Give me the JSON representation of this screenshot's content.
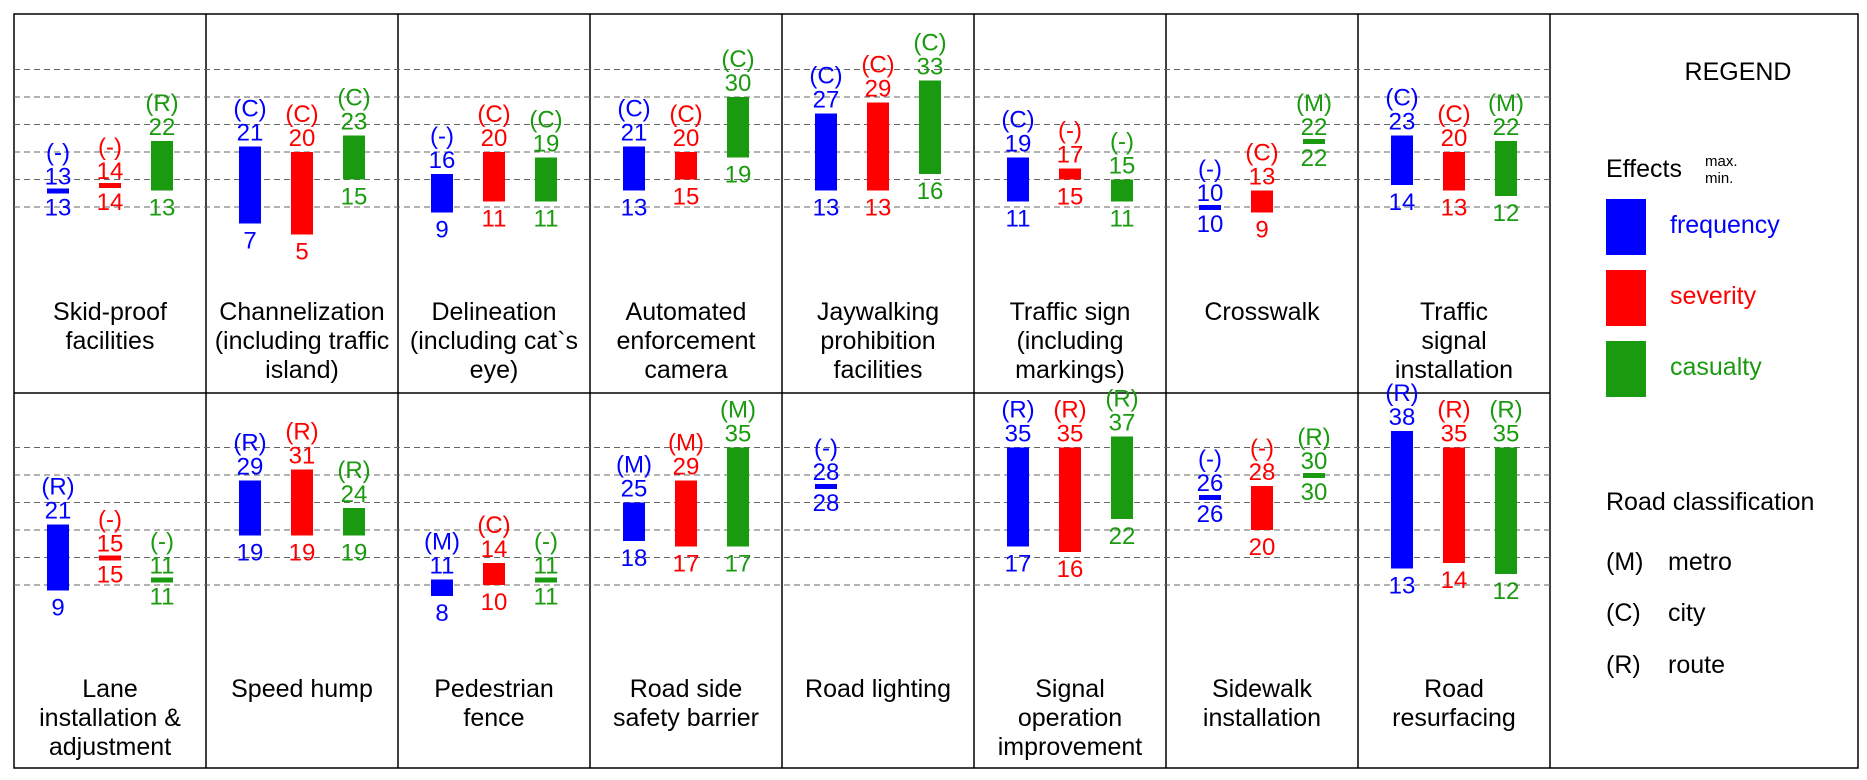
{
  "legend": {
    "title": "REGEND",
    "effects_label": "Effects",
    "max_label": "max.",
    "min_label": "min.",
    "items": [
      {
        "label": "frequency",
        "color": "#0000ff"
      },
      {
        "label": "severity",
        "color": "#ff0000"
      },
      {
        "label": "casualty",
        "color": "#1a9a0f"
      }
    ],
    "road_title": "Road classification",
    "roads": [
      {
        "code": "(M)",
        "label": "metro"
      },
      {
        "code": "(C)",
        "label": "city"
      },
      {
        "code": "(R)",
        "label": "route"
      }
    ]
  },
  "chart_data": {
    "type": "bar",
    "series_colors": {
      "frequency": "#0000ff",
      "severity": "#ff0000",
      "casualty": "#1a9a0f"
    },
    "panels": [
      {
        "title": [
          "Skid-proof",
          "facilities"
        ],
        "frequency": {
          "cls": "(-)",
          "max": 13,
          "min": 13
        },
        "severity": {
          "cls": "(-)",
          "max": 14,
          "min": 14
        },
        "casualty": {
          "cls": "(R)",
          "max": 22,
          "min": 13
        }
      },
      {
        "title": [
          "Channelization",
          "(including traffic",
          "island)"
        ],
        "frequency": {
          "cls": "(C)",
          "max": 21,
          "min": 7
        },
        "severity": {
          "cls": "(C)",
          "max": 20,
          "min": 5
        },
        "casualty": {
          "cls": "(C)",
          "max": 23,
          "min": 15
        }
      },
      {
        "title": [
          "Delineation",
          "(including cat`s",
          "eye)"
        ],
        "frequency": {
          "cls": "(-)",
          "max": 16,
          "min": 9
        },
        "severity": {
          "cls": "(C)",
          "max": 20,
          "min": 11
        },
        "casualty": {
          "cls": "(C)",
          "max": 19,
          "min": 11
        }
      },
      {
        "title": [
          "Automated",
          "enforcement",
          "camera"
        ],
        "frequency": {
          "cls": "(C)",
          "max": 21,
          "min": 13
        },
        "severity": {
          "cls": "(C)",
          "max": 20,
          "min": 15
        },
        "casualty": {
          "cls": "(C)",
          "max": 30,
          "min": 19
        }
      },
      {
        "title": [
          "Jaywalking",
          "prohibition",
          "facilities"
        ],
        "frequency": {
          "cls": "(C)",
          "max": 27,
          "min": 13
        },
        "severity": {
          "cls": "(C)",
          "max": 29,
          "min": 13
        },
        "casualty": {
          "cls": "(C)",
          "max": 33,
          "min": 16
        }
      },
      {
        "title": [
          "Traffic sign",
          "(including",
          "markings)"
        ],
        "frequency": {
          "cls": "(C)",
          "max": 19,
          "min": 11
        },
        "severity": {
          "cls": "(-)",
          "max": 17,
          "min": 15
        },
        "casualty": {
          "cls": "(-)",
          "max": 15,
          "min": 11
        }
      },
      {
        "title": [
          "Crosswalk"
        ],
        "frequency": {
          "cls": "(-)",
          "max": 10,
          "min": 10
        },
        "severity": {
          "cls": "(C)",
          "max": 13,
          "min": 9
        },
        "casualty": {
          "cls": "(M)",
          "max": 22,
          "min": 22
        }
      },
      {
        "title": [
          "Traffic",
          "signal",
          "installation"
        ],
        "frequency": {
          "cls": "(C)",
          "max": 23,
          "min": 14
        },
        "severity": {
          "cls": "(C)",
          "max": 20,
          "min": 13
        },
        "casualty": {
          "cls": "(M)",
          "max": 22,
          "min": 12
        }
      },
      {
        "title": [
          "Lane",
          "installation &",
          "adjustment"
        ],
        "frequency": {
          "cls": "(R)",
          "max": 21,
          "min": 9
        },
        "severity": {
          "cls": "(-)",
          "max": 15,
          "min": 15
        },
        "casualty": {
          "cls": "(-)",
          "max": 11,
          "min": 11
        }
      },
      {
        "title": [
          "Speed hump"
        ],
        "frequency": {
          "cls": "(R)",
          "max": 29,
          "min": 19
        },
        "severity": {
          "cls": "(R)",
          "max": 31,
          "min": 19
        },
        "casualty": {
          "cls": "(R)",
          "max": 24,
          "min": 19
        }
      },
      {
        "title": [
          "Pedestrian",
          "fence"
        ],
        "frequency": {
          "cls": "(M)",
          "max": 11,
          "min": 8
        },
        "severity": {
          "cls": "(C)",
          "max": 14,
          "min": 10
        },
        "casualty": {
          "cls": "(-)",
          "max": 11,
          "min": 11
        }
      },
      {
        "title": [
          "Road side",
          "safety barrier"
        ],
        "frequency": {
          "cls": "(M)",
          "max": 25,
          "min": 18
        },
        "severity": {
          "cls": "(M)",
          "max": 29,
          "min": 17
        },
        "casualty": {
          "cls": "(M)",
          "max": 35,
          "min": 17
        }
      },
      {
        "title": [
          "Road lighting"
        ],
        "frequency": {
          "cls": "(-)",
          "max": 28,
          "min": 28
        },
        "severity": null,
        "casualty": null
      },
      {
        "title": [
          "Signal",
          "operation",
          "improvement"
        ],
        "frequency": {
          "cls": "(R)",
          "max": 35,
          "min": 17
        },
        "severity": {
          "cls": "(R)",
          "max": 35,
          "min": 16
        },
        "casualty": {
          "cls": "(R)",
          "max": 37,
          "min": 22
        }
      },
      {
        "title": [
          "Sidewalk",
          "installation"
        ],
        "frequency": {
          "cls": "(-)",
          "max": 26,
          "min": 26
        },
        "severity": {
          "cls": "(-)",
          "max": 28,
          "min": 20
        },
        "casualty": {
          "cls": "(R)",
          "max": 30,
          "min": 30
        }
      },
      {
        "title": [
          "Road",
          "resurfacing"
        ],
        "frequency": {
          "cls": "(R)",
          "max": 38,
          "min": 13
        },
        "severity": {
          "cls": "(R)",
          "max": 35,
          "min": 14
        },
        "casualty": {
          "cls": "(R)",
          "max": 35,
          "min": 12
        }
      }
    ]
  }
}
